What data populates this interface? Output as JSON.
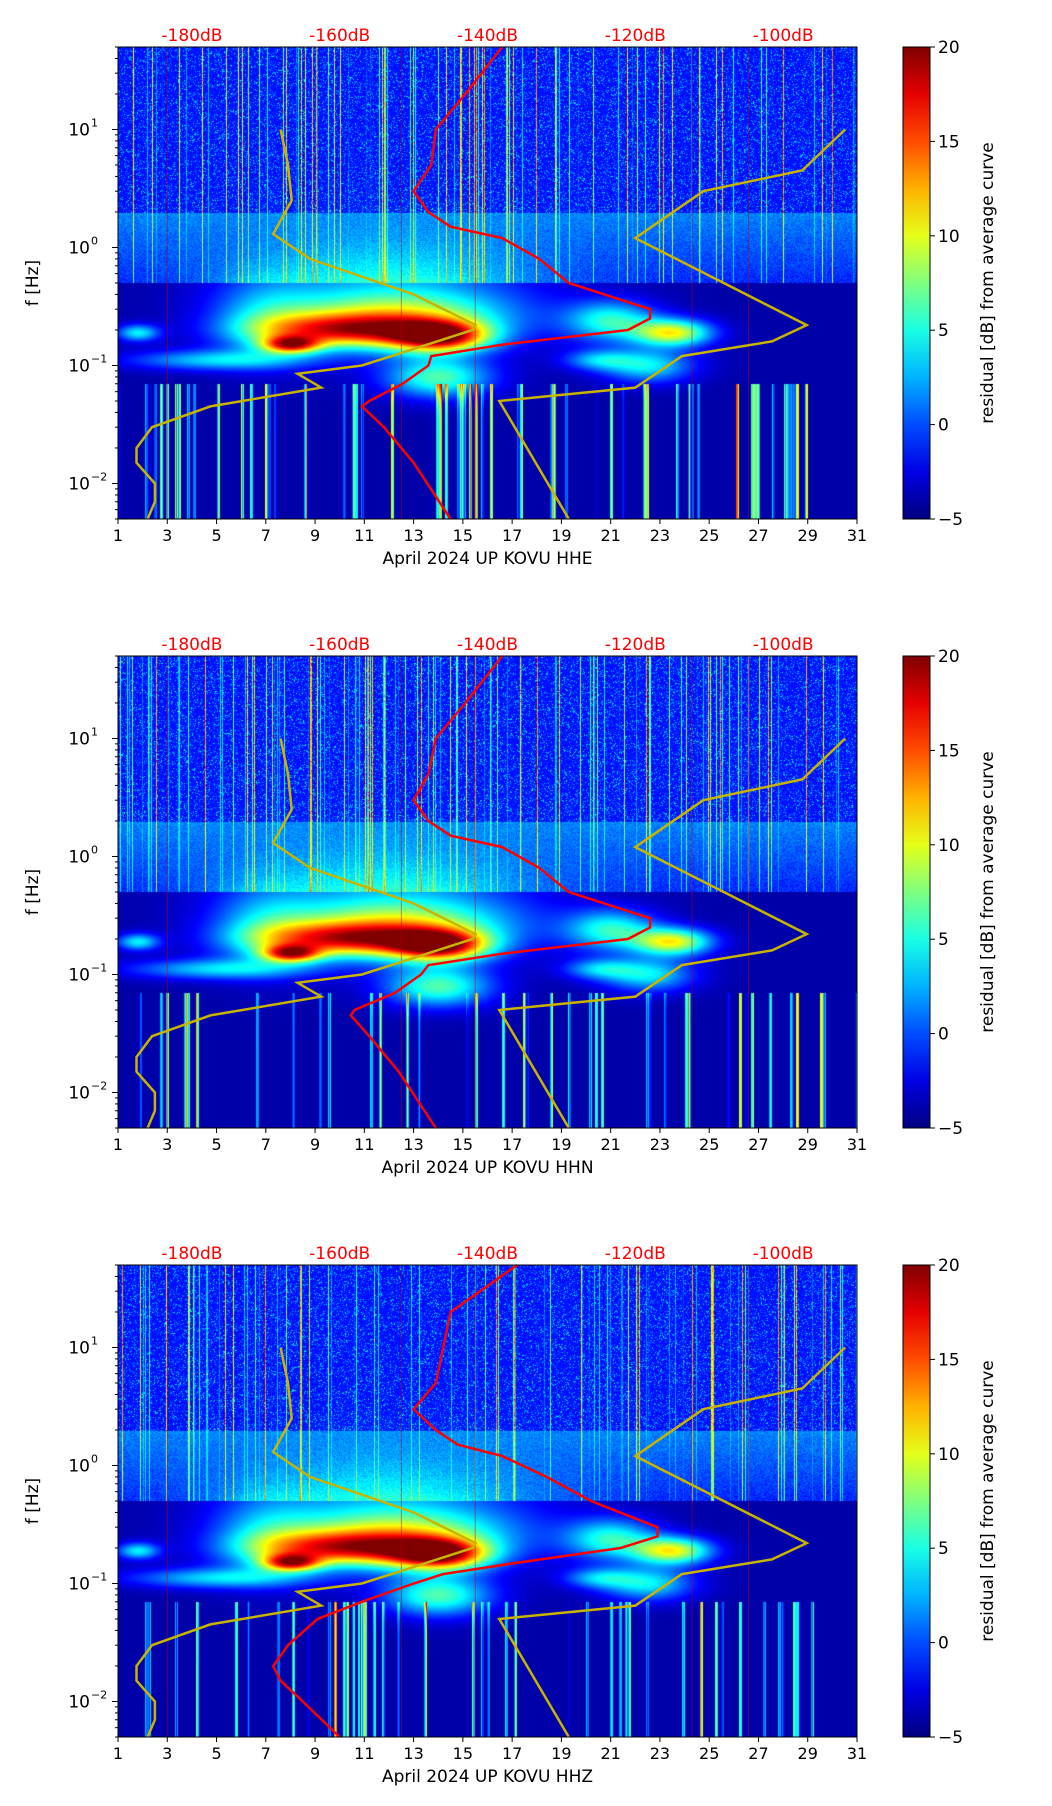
{
  "chart_data": {
    "type": "heatmap",
    "panels": [
      {
        "xlabel": "April 2024 UP KOVU  HHE",
        "ylabel": "f [Hz]",
        "colorbar_label": "residual [dB] from average curve",
        "red_curve": [
          [
            50,
            -138
          ],
          [
            20,
            -143
          ],
          [
            10,
            -147
          ],
          [
            5,
            -147.6
          ],
          [
            3,
            -150
          ],
          [
            2,
            -148
          ],
          [
            1.5,
            -145
          ],
          [
            1.2,
            -138
          ],
          [
            0.8,
            -133
          ],
          [
            0.5,
            -129
          ],
          [
            0.3,
            -118
          ],
          [
            0.25,
            -118
          ],
          [
            0.2,
            -121
          ],
          [
            0.15,
            -138
          ],
          [
            0.12,
            -147.6
          ],
          [
            0.1,
            -148
          ],
          [
            0.07,
            -151.5
          ],
          [
            0.05,
            -156
          ],
          [
            0.045,
            -157
          ],
          [
            0.03,
            -154
          ],
          [
            0.015,
            -150
          ],
          [
            0.005,
            -145
          ]
        ]
      },
      {
        "xlabel": "April 2024 UP KOVU  HHN",
        "ylabel": "f [Hz]",
        "colorbar_label": "residual [dB] from average curve",
        "red_curve": [
          [
            50,
            -138
          ],
          [
            20,
            -143
          ],
          [
            10,
            -147
          ],
          [
            5,
            -148
          ],
          [
            3,
            -150
          ],
          [
            2,
            -148
          ],
          [
            1.5,
            -145
          ],
          [
            1.2,
            -138
          ],
          [
            0.8,
            -133
          ],
          [
            0.5,
            -129
          ],
          [
            0.3,
            -118
          ],
          [
            0.25,
            -118
          ],
          [
            0.2,
            -121
          ],
          [
            0.15,
            -138
          ],
          [
            0.12,
            -148
          ],
          [
            0.1,
            -149
          ],
          [
            0.07,
            -152.5
          ],
          [
            0.05,
            -158
          ],
          [
            0.045,
            -158.5
          ],
          [
            0.03,
            -156
          ],
          [
            0.015,
            -152
          ],
          [
            0.005,
            -147
          ]
        ]
      },
      {
        "xlabel": "April 2024 UP KOVU  HHZ",
        "ylabel": "f [Hz]",
        "colorbar_label": "residual [dB] from average curve",
        "red_curve": [
          [
            50,
            -136
          ],
          [
            30,
            -141
          ],
          [
            20,
            -145
          ],
          [
            10,
            -146
          ],
          [
            5,
            -147
          ],
          [
            3,
            -150
          ],
          [
            2,
            -147
          ],
          [
            1.5,
            -144
          ],
          [
            1.2,
            -138
          ],
          [
            0.8,
            -132
          ],
          [
            0.5,
            -126
          ],
          [
            0.3,
            -117
          ],
          [
            0.25,
            -117
          ],
          [
            0.2,
            -122
          ],
          [
            0.15,
            -136
          ],
          [
            0.12,
            -146
          ],
          [
            0.1,
            -150
          ],
          [
            0.07,
            -157
          ],
          [
            0.05,
            -163
          ],
          [
            0.03,
            -167
          ],
          [
            0.02,
            -169
          ],
          [
            0.015,
            -168
          ],
          [
            0.01,
            -165
          ],
          [
            0.005,
            -160
          ]
        ]
      }
    ],
    "yellow_curves": [
      [
        [
          10,
          -168
        ],
        [
          5,
          -167
        ],
        [
          2.5,
          -166.5
        ],
        [
          1.3,
          -169
        ],
        [
          0.8,
          -164
        ],
        [
          0.4,
          -150
        ],
        [
          0.22,
          -141.6
        ],
        [
          0.2,
          -142
        ],
        [
          0.1,
          -157
        ],
        [
          0.085,
          -165.7
        ],
        [
          0.065,
          -162.5
        ],
        [
          0.045,
          -177.5
        ],
        [
          0.03,
          -185.4
        ],
        [
          0.02,
          -187.5
        ],
        [
          0.015,
          -187.5
        ],
        [
          0.01,
          -185
        ],
        [
          0.007,
          -185
        ],
        [
          0.005,
          -186
        ]
      ],
      [
        [
          10,
          -91.6
        ],
        [
          4.5,
          -97.4
        ],
        [
          3,
          -110.8
        ],
        [
          1.2,
          -120
        ],
        [
          0.22,
          -96.8
        ],
        [
          0.16,
          -101.5
        ],
        [
          0.12,
          -113.7
        ],
        [
          0.065,
          -120
        ],
        [
          0.05,
          -138.4
        ],
        [
          0.005,
          -129
        ]
      ]
    ],
    "x_ticks": [
      "1",
      "3",
      "5",
      "7",
      "9",
      "11",
      "13",
      "15",
      "17",
      "19",
      "21",
      "23",
      "25",
      "27",
      "29",
      "31"
    ],
    "xlim": [
      1,
      31
    ],
    "y_ticks": [
      {
        "value": 10,
        "label": "10",
        "exp": "1"
      },
      {
        "value": 1,
        "label": "10",
        "exp": "0"
      },
      {
        "value": 0.1,
        "label": "10",
        "exp": "−1"
      },
      {
        "value": 0.01,
        "label": "10",
        "exp": "−2"
      }
    ],
    "ylim": [
      0.005,
      50
    ],
    "y_scale": "log",
    "top_axis_ticks": [
      {
        "value": -180,
        "label": "-180dB"
      },
      {
        "value": -160,
        "label": "-160dB"
      },
      {
        "value": -140,
        "label": "-140dB"
      },
      {
        "value": -120,
        "label": "-120dB"
      },
      {
        "value": -100,
        "label": "-100dB"
      }
    ],
    "top_axis_range": [
      -190,
      -90
    ],
    "colorbar": {
      "range": [
        -5,
        20
      ],
      "ticks": [
        "20",
        "15",
        "10",
        "5",
        "0",
        "−5"
      ],
      "tick_values": [
        20,
        15,
        10,
        5,
        0,
        -5
      ],
      "colormap": "jet"
    },
    "colors": {
      "red_curve": "#ff0000",
      "yellow_curve": "#c8b400",
      "top_axis_text": "#ff0000"
    }
  }
}
